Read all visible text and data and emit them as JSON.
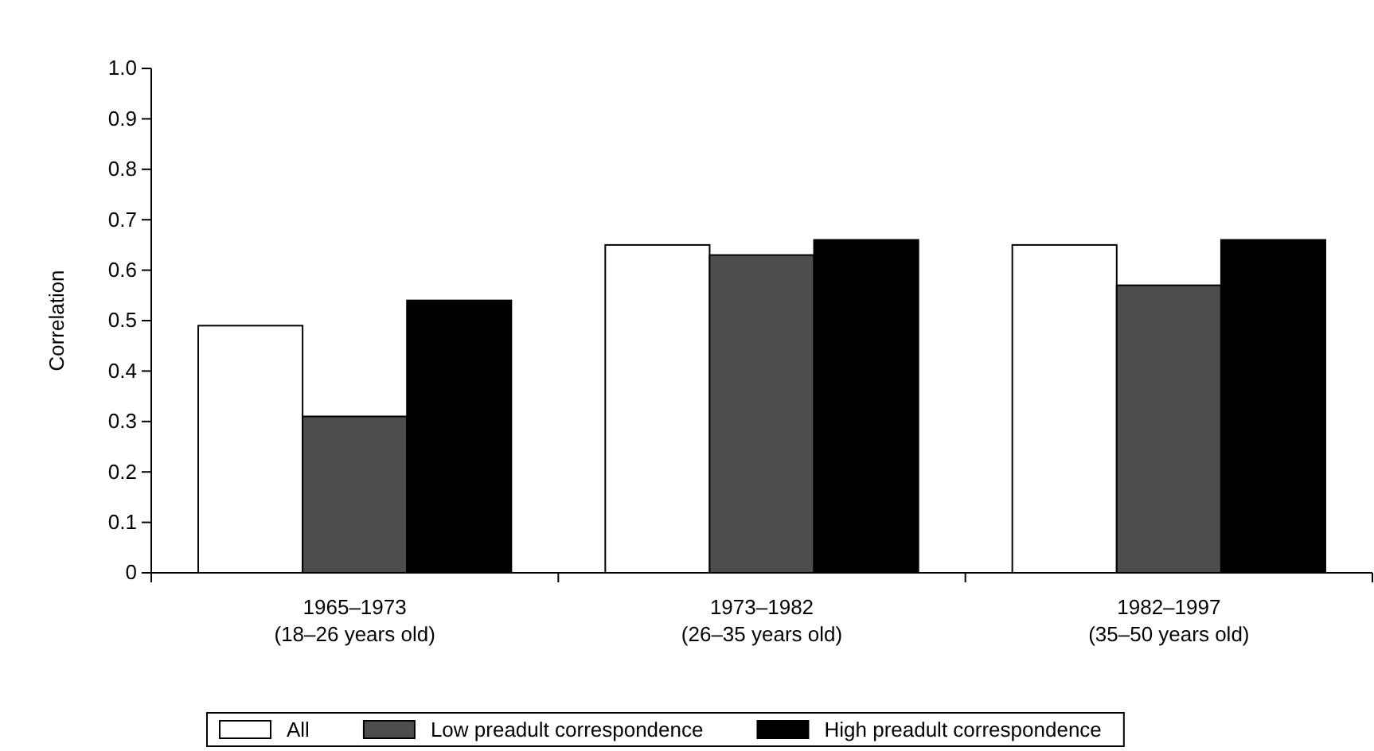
{
  "chart_data": {
    "type": "bar",
    "ylabel": "Correlation",
    "categories": [
      "1965–1973\n(18–26 years old)",
      "1973–1982\n(26–35 years old)",
      "1982–1997\n(35–50 years old)"
    ],
    "series": [
      {
        "name": "All",
        "color": "#ffffff",
        "values": [
          0.49,
          0.65,
          0.65
        ]
      },
      {
        "name": "Low preadult correspondence",
        "color": "#4d4d4d",
        "values": [
          0.31,
          0.63,
          0.57
        ]
      },
      {
        "name": "High preadult correspondence",
        "color": "#000000",
        "values": [
          0.54,
          0.66,
          0.66
        ]
      }
    ],
    "ylim": [
      0,
      1.0
    ],
    "yticks": [
      0,
      {
        "value": 0.1,
        "label": "0.1"
      },
      {
        "value": 0.2,
        "label": "0.2"
      },
      {
        "value": 0.3,
        "label": "0.3"
      },
      {
        "value": 0.4,
        "label": "0.4"
      },
      {
        "value": 0.5,
        "label": "0.5"
      },
      {
        "value": 0.6,
        "label": "0.6"
      },
      {
        "value": 0.7,
        "label": "0.7"
      },
      {
        "value": 0.8,
        "label": "0.8"
      },
      {
        "value": 0.9,
        "label": "0.9"
      },
      {
        "value": 1.0,
        "label": "1.0"
      }
    ],
    "grid": false,
    "legend": "bottom"
  }
}
